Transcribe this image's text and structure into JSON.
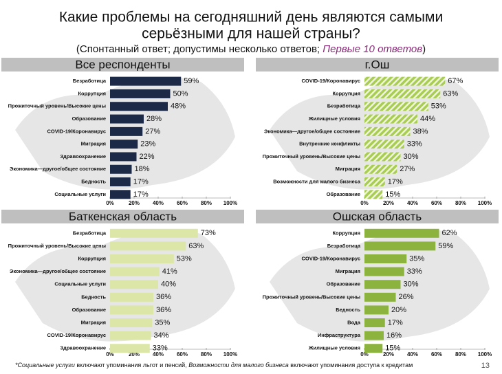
{
  "title": [
    "Какие проблемы на сегодняшний день являются самыми",
    "серьёзными для нашей страны?"
  ],
  "subtitle": {
    "prefix": "(Спонтанный ответ; допустимы несколько ответов;",
    "highlight": "Первые 10 ответов",
    "suffix": ")"
  },
  "footnote": [
    {
      "text": "*Социальные услуги",
      "italic": true
    },
    {
      "text": " включают упоминания льгот и пенсий, ",
      "italic": false
    },
    {
      "text": "Возможности для малого бизнеса",
      "italic": true
    },
    {
      "text": " включают упоминания доступа к кредитам",
      "italic": false
    }
  ],
  "page_number": "13",
  "chart_data": [
    {
      "type": "hbar",
      "title": "Все респонденты",
      "color": "#1c2a48",
      "pattern": "solid",
      "categories": [
        "Безработица",
        "Коррупция",
        "Прожиточный уровень/Высокие цены",
        "Образование",
        "COVID-19/Коронавирус",
        "Миграция",
        "Здравоохранение",
        "Экономика—другое/общее состояние",
        "Бедность",
        "Социальные услуги"
      ],
      "values": [
        59,
        50,
        48,
        28,
        27,
        23,
        22,
        18,
        17,
        17
      ],
      "value_labels": [
        "59%",
        "50%",
        "48%",
        "28%",
        "27%",
        "23%",
        "22%",
        "18%",
        "17%",
        "17%"
      ],
      "xlim": [
        0,
        100
      ],
      "xticks": [
        {
          "value": 0,
          "label": "0%"
        },
        {
          "value": 20,
          "label": "20%"
        },
        {
          "value": 40,
          "label": "40%"
        },
        {
          "value": 60,
          "label": "60%"
        },
        {
          "value": 80,
          "label": "80%"
        },
        {
          "value": 100,
          "label": "100%"
        }
      ]
    },
    {
      "type": "hbar",
      "title": "г.Ош",
      "color": "#a9cc55",
      "pattern": "hatch",
      "categories": [
        "COVID-19/Коронавирус",
        "Коррупция",
        "Безработица",
        "Жилищные условия",
        "Экономика—другое/общее состояние",
        "Внутренние конфликты",
        "Прожиточный уровень/Высокие цены",
        "Миграция",
        "Возможности для малого бизнеса",
        "Образование"
      ],
      "values": [
        67,
        63,
        53,
        44,
        38,
        33,
        30,
        27,
        17,
        15
      ],
      "value_labels": [
        "67%",
        "63%",
        "53%",
        "44%",
        "38%",
        "33%",
        "30%",
        "27%",
        "17%",
        "15%"
      ],
      "xlim": [
        0,
        100
      ],
      "xticks": [
        {
          "value": 0,
          "label": "0%"
        },
        {
          "value": 20,
          "label": "20%"
        },
        {
          "value": 40,
          "label": "40%"
        },
        {
          "value": 60,
          "label": "60%"
        },
        {
          "value": 80,
          "label": "80%"
        },
        {
          "value": 100,
          "label": "100%"
        }
      ]
    },
    {
      "type": "hbar",
      "title": "Баткенская область",
      "color": "#dce6a6",
      "pattern": "solid",
      "categories": [
        "Безработица",
        "Прожиточный уровень/Высокие цены",
        "Коррупция",
        "Экономика—другое/общее состояние",
        "Социальные услуги",
        "Бедность",
        "Образование",
        "Миграция",
        "COVID-19/Коронавирус",
        "Здравоохранение"
      ],
      "values": [
        73,
        63,
        53,
        41,
        40,
        36,
        36,
        35,
        34,
        33
      ],
      "value_labels": [
        "73%",
        "63%",
        "53%",
        "41%",
        "40%",
        "36%",
        "36%",
        "35%",
        "34%",
        "33%"
      ],
      "xlim": [
        0,
        100
      ],
      "xticks": [
        {
          "value": 0,
          "label": "0%"
        },
        {
          "value": 20,
          "label": "20%"
        },
        {
          "value": 40,
          "label": "40%"
        },
        {
          "value": 60,
          "label": "60%"
        },
        {
          "value": 80,
          "label": "80%"
        },
        {
          "value": 100,
          "label": "100%"
        }
      ]
    },
    {
      "type": "hbar",
      "title": "Ошская область",
      "color": "#8db33f",
      "pattern": "solid",
      "categories": [
        "Коррупция",
        "Безработица",
        "COVID-19/Коронавирус",
        "Миграция",
        "Образование",
        "Прожиточный уровень/Высокие цены",
        "Бедность",
        "Вода",
        "Инфраструктура",
        "Жилищные условия"
      ],
      "values": [
        62,
        59,
        35,
        33,
        30,
        26,
        20,
        17,
        16,
        15
      ],
      "value_labels": [
        "62%",
        "59%",
        "35%",
        "33%",
        "30%",
        "26%",
        "20%",
        "17%",
        "16%",
        "15%"
      ],
      "xlim": [
        0,
        100
      ],
      "xticks": [
        {
          "value": 0,
          "label": "0%"
        },
        {
          "value": 20,
          "label": "20%"
        },
        {
          "value": 40,
          "label": "40%"
        },
        {
          "value": 60,
          "label": "60%"
        },
        {
          "value": 80,
          "label": "80%"
        },
        {
          "value": 100,
          "label": "100%"
        }
      ]
    }
  ]
}
